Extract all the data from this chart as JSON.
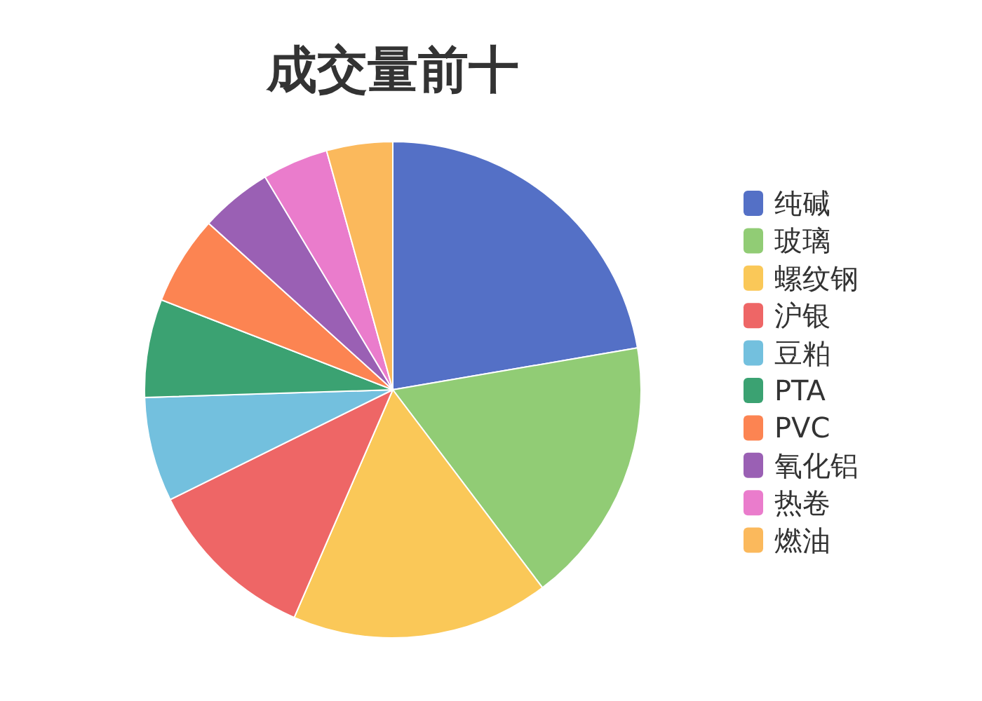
{
  "chart_data": {
    "type": "pie",
    "title": "成交量前十",
    "categories": [
      "纯碱",
      "玻璃",
      "螺纹钢",
      "沪银",
      "豆粕",
      "PTA",
      "PVC",
      "氧化铝",
      "热卷",
      "燃油"
    ],
    "values": [
      22.3,
      17.4,
      16.8,
      11.2,
      6.8,
      6.4,
      5.8,
      4.7,
      4.3,
      4.3
    ],
    "colors": [
      "#5470c6",
      "#91cc75",
      "#fac858",
      "#ee6666",
      "#73c0de",
      "#3ba272",
      "#fc8452",
      "#9a60b4",
      "#ea7ccc",
      "#fbb95c"
    ],
    "legend": "right"
  }
}
